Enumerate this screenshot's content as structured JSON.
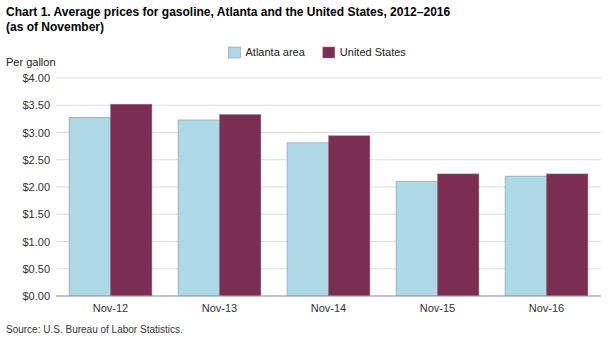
{
  "chart_data": {
    "type": "bar",
    "title": "Chart 1.  Average prices for gasoline, Atlanta and the United States, 2012–2016",
    "subtitle": "(as of November)",
    "ylabel": "Per gallon",
    "source": "Source: U.S. Bureau of Labor Statistics.",
    "categories": [
      "Nov-12",
      "Nov-13",
      "Nov-14",
      "Nov-15",
      "Nov-16"
    ],
    "series": [
      {
        "name": "Atlanta area",
        "color": "#add8e6",
        "values": [
          3.28,
          3.23,
          2.81,
          2.1,
          2.2
        ]
      },
      {
        "name": "United States",
        "color": "#7b2d52",
        "values": [
          3.52,
          3.33,
          2.94,
          2.24,
          2.24
        ]
      }
    ],
    "ylim": [
      0.0,
      4.0
    ],
    "yticks": [
      {
        "value": 0.0,
        "label": "$0.00"
      },
      {
        "value": 0.5,
        "label": "$0.50"
      },
      {
        "value": 1.0,
        "label": "$1.00"
      },
      {
        "value": 1.5,
        "label": "$1.50"
      },
      {
        "value": 2.0,
        "label": "$2.00"
      },
      {
        "value": 2.5,
        "label": "$2.50"
      },
      {
        "value": 3.0,
        "label": "$3.00"
      },
      {
        "value": 3.5,
        "label": "$3.50"
      },
      {
        "value": 4.0,
        "label": "$4.00"
      }
    ],
    "grid": true,
    "legend": "top"
  }
}
